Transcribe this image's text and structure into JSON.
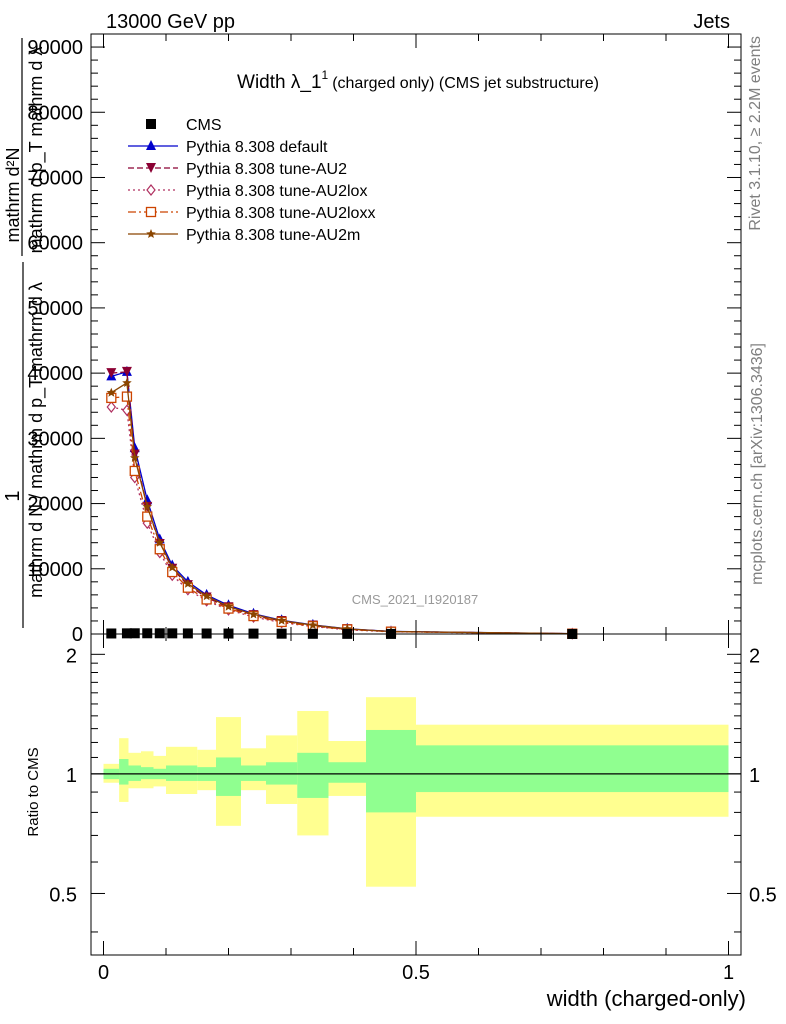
{
  "header": {
    "left": "13000 GeV pp",
    "right": "Jets"
  },
  "side_labels": {
    "rivet": "Rivet 3.1.10, ≥ 2.2M events",
    "mcplots": "mcplots.cern.ch [arXiv:1306.3436]"
  },
  "chart_data": [
    {
      "type": "line",
      "title_main": "Width λ_1",
      "title_sup": "1",
      "title_rest": "(charged only) (CMS jet substructure)",
      "ylabel_numerator": "1",
      "ylabel_denominator": "mathrm d N / mathrm d p_T mathrm d λ",
      "ylabel_top": "mathrm d²N",
      "ylabel_top2": "mathrm d p_T mathrm d λ",
      "xlim": [
        -0.02,
        1.02
      ],
      "ylim": [
        0,
        92000
      ],
      "yticks": [
        0,
        10000,
        20000,
        30000,
        40000,
        50000,
        60000,
        70000,
        80000,
        90000
      ],
      "ytick_labels": [
        "0",
        "10000",
        "20000",
        "30000",
        "40000",
        "50000",
        "60000",
        "70000",
        "80000",
        "90000"
      ],
      "watermark": "CMS_2021_I1920187",
      "x": [
        0.0125,
        0.0375,
        0.05,
        0.07,
        0.09,
        0.11,
        0.135,
        0.165,
        0.2,
        0.24,
        0.285,
        0.335,
        0.39,
        0.46,
        0.75
      ],
      "series": [
        {
          "name": "CMS",
          "color": "#000000",
          "marker": "square",
          "line": "none",
          "values": [
            80,
            100,
            110,
            110,
            110,
            100,
            90,
            80,
            70,
            60,
            50,
            35,
            25,
            15,
            3
          ]
        },
        {
          "name": "Pythia 8.308 default",
          "color": "#0000cc",
          "marker": "triangle-up",
          "line": "solid",
          "values": [
            39500,
            40200,
            28500,
            20500,
            14500,
            10500,
            8000,
            6000,
            4400,
            3100,
            2100,
            1400,
            800,
            400,
            50
          ]
        },
        {
          "name": "Pythia 8.308 tune-AU2",
          "color": "#8b0033",
          "marker": "triangle-down",
          "line": "dashed",
          "values": [
            40000,
            40200,
            27500,
            19500,
            13800,
            10000,
            7500,
            5600,
            4100,
            2900,
            2000,
            1300,
            750,
            380,
            45
          ]
        },
        {
          "name": "Pythia 8.308 tune-AU2lox",
          "color": "#b03060",
          "marker": "diamond",
          "line": "dotted",
          "values": [
            34800,
            34300,
            24000,
            17000,
            12500,
            9000,
            6800,
            5100,
            3700,
            2600,
            1750,
            1150,
            650,
            330,
            40
          ]
        },
        {
          "name": "Pythia 8.308 tune-AU2loxx",
          "color": "#cc4400",
          "marker": "square-open",
          "line": "dashdot",
          "values": [
            36200,
            36400,
            25000,
            18000,
            13000,
            9500,
            7100,
            5300,
            3900,
            2750,
            1850,
            1200,
            700,
            350,
            42
          ]
        },
        {
          "name": "Pythia 8.308 tune-AU2m",
          "color": "#8b4500",
          "marker": "star",
          "line": "solid",
          "values": [
            37000,
            38500,
            27000,
            19500,
            14000,
            10200,
            7700,
            5800,
            4200,
            3000,
            2050,
            1350,
            780,
            390,
            48
          ]
        }
      ]
    },
    {
      "type": "area",
      "ylabel": "Ratio to CMS",
      "xlabel": "width (charged-only)",
      "xlim": [
        -0.02,
        1.02
      ],
      "ylim": [
        0.35,
        2.25
      ],
      "yticks": [
        0.5,
        1,
        2
      ],
      "ytick_labels": [
        "0.5",
        "1",
        "2"
      ],
      "xticks": [
        0,
        0.5,
        1
      ],
      "xtick_labels": [
        "0",
        "0.5",
        "1"
      ],
      "band_colors": {
        "inner": "#90ff90",
        "outer": "#ffff90"
      },
      "bins": [
        {
          "x0": 0.0,
          "x1": 0.025,
          "inner": [
            0.97,
            1.03
          ],
          "outer": [
            0.95,
            1.06
          ]
        },
        {
          "x0": 0.025,
          "x1": 0.04,
          "inner": [
            0.94,
            1.09
          ],
          "outer": [
            0.85,
            1.23
          ]
        },
        {
          "x0": 0.04,
          "x1": 0.06,
          "inner": [
            0.96,
            1.05
          ],
          "outer": [
            0.92,
            1.13
          ]
        },
        {
          "x0": 0.06,
          "x1": 0.08,
          "inner": [
            0.97,
            1.04
          ],
          "outer": [
            0.92,
            1.14
          ]
        },
        {
          "x0": 0.08,
          "x1": 0.1,
          "inner": [
            0.97,
            1.03
          ],
          "outer": [
            0.93,
            1.11
          ]
        },
        {
          "x0": 0.1,
          "x1": 0.12,
          "inner": [
            0.96,
            1.05
          ],
          "outer": [
            0.89,
            1.17
          ]
        },
        {
          "x0": 0.12,
          "x1": 0.15,
          "inner": [
            0.96,
            1.05
          ],
          "outer": [
            0.89,
            1.17
          ]
        },
        {
          "x0": 0.15,
          "x1": 0.18,
          "inner": [
            0.96,
            1.04
          ],
          "outer": [
            0.91,
            1.15
          ]
        },
        {
          "x0": 0.18,
          "x1": 0.22,
          "inner": [
            0.88,
            1.1
          ],
          "outer": [
            0.74,
            1.39
          ]
        },
        {
          "x0": 0.22,
          "x1": 0.26,
          "inner": [
            0.96,
            1.05
          ],
          "outer": [
            0.91,
            1.16
          ]
        },
        {
          "x0": 0.26,
          "x1": 0.31,
          "inner": [
            0.94,
            1.07
          ],
          "outer": [
            0.84,
            1.25
          ]
        },
        {
          "x0": 0.31,
          "x1": 0.36,
          "inner": [
            0.87,
            1.13
          ],
          "outer": [
            0.7,
            1.44
          ]
        },
        {
          "x0": 0.36,
          "x1": 0.42,
          "inner": [
            0.95,
            1.07
          ],
          "outer": [
            0.88,
            1.21
          ]
        },
        {
          "x0": 0.42,
          "x1": 0.5,
          "inner": [
            0.8,
            1.29
          ],
          "outer": [
            0.52,
            1.56
          ]
        },
        {
          "x0": 0.5,
          "x1": 1.0,
          "inner": [
            0.9,
            1.18
          ],
          "outer": [
            0.78,
            1.33
          ]
        }
      ]
    }
  ]
}
